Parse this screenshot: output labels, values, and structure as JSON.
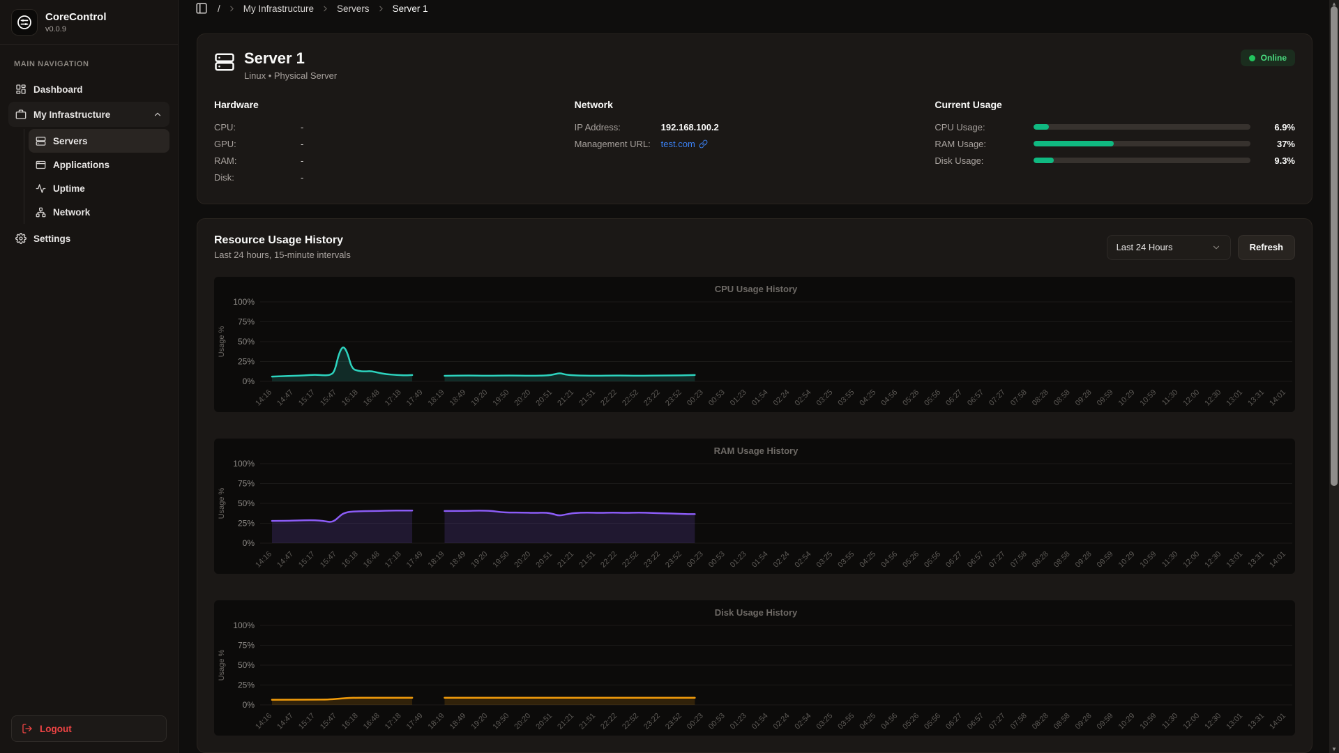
{
  "app": {
    "name": "CoreControl",
    "version": "v0.0.9"
  },
  "colors": {
    "accent_green": "#22c55e",
    "progress_fill": "#10b981",
    "logout_red": "#ef4444",
    "link_blue": "#3b82f6",
    "cpu_line": "#2dd4bf",
    "ram_line": "#8b5cf6",
    "disk_line": "#f59e0b"
  },
  "sidebar": {
    "section_label": "MAIN NAVIGATION",
    "items": [
      {
        "label": "Dashboard"
      },
      {
        "label": "My Infrastructure",
        "expanded": true
      },
      {
        "label": "Servers",
        "active": true
      },
      {
        "label": "Applications"
      },
      {
        "label": "Uptime"
      },
      {
        "label": "Network"
      },
      {
        "label": "Settings"
      }
    ],
    "logout_label": "Logout"
  },
  "breadcrumb": {
    "items": [
      "/",
      "My Infrastructure",
      "Servers",
      "Server 1"
    ]
  },
  "server_card": {
    "title": "Server 1",
    "subtitle": "Linux • Physical Server",
    "status": "Online",
    "hardware": {
      "heading": "Hardware",
      "rows": [
        {
          "label": "CPU:",
          "value": "-"
        },
        {
          "label": "GPU:",
          "value": "-"
        },
        {
          "label": "RAM:",
          "value": "-"
        },
        {
          "label": "Disk:",
          "value": "-"
        }
      ]
    },
    "network": {
      "heading": "Network",
      "ip_label": "IP Address:",
      "ip_value": "192.168.100.2",
      "url_label": "Management URL:",
      "url_value": "test.com"
    },
    "usage": {
      "heading": "Current Usage",
      "rows": [
        {
          "label": "CPU Usage:",
          "value": "6.9%",
          "pct": 6.9
        },
        {
          "label": "RAM Usage:",
          "value": "37%",
          "pct": 37
        },
        {
          "label": "Disk Usage:",
          "value": "9.3%",
          "pct": 9.3
        }
      ]
    }
  },
  "history_card": {
    "title": "Resource Usage History",
    "subtitle": "Last 24 hours, 15-minute intervals",
    "range_selected": "Last 24 Hours",
    "refresh_label": "Refresh"
  },
  "chart_data": [
    {
      "type": "area",
      "title": "CPU Usage History",
      "ylabel": "Usage %",
      "ylim": [
        0,
        100
      ],
      "yticks": [
        "0%",
        "25%",
        "50%",
        "75%",
        "100%"
      ],
      "grid": true,
      "x_tick_rotation": -45,
      "x_labels": [
        "14:16",
        "14:47",
        "15:17",
        "15:47",
        "16:18",
        "16:48",
        "17:18",
        "17:49",
        "18:19",
        "18:49",
        "19:20",
        "19:50",
        "20:20",
        "20:51",
        "21:21",
        "21:51",
        "22:22",
        "22:52",
        "23:22",
        "23:52",
        "00:23",
        "00:53",
        "01:23",
        "01:54",
        "02:24",
        "02:54",
        "03:25",
        "03:55",
        "04:25",
        "04:56",
        "05:26",
        "05:56",
        "06:27",
        "06:57",
        "07:27",
        "07:58",
        "08:28",
        "08:58",
        "09:28",
        "09:59",
        "10:29",
        "10:59",
        "11:30",
        "12:00",
        "12:30",
        "13:01",
        "13:31",
        "14:01"
      ],
      "color": "#2dd4bf",
      "fill": "rgba(45,212,191,0.16)",
      "segments": [
        {
          "points": [
            [
              0,
              6
            ],
            [
              0.5,
              6.5
            ],
            [
              1,
              7
            ],
            [
              1.5,
              7.5
            ],
            [
              2,
              8.5
            ],
            [
              2.4,
              7.5
            ],
            [
              2.7,
              8
            ],
            [
              2.9,
              12
            ],
            [
              3.1,
              35
            ],
            [
              3.3,
              45
            ],
            [
              3.5,
              36
            ],
            [
              3.7,
              16
            ],
            [
              4,
              13
            ],
            [
              4.3,
              12.5
            ],
            [
              4.6,
              13
            ],
            [
              4.9,
              11
            ],
            [
              5.3,
              9
            ],
            [
              5.8,
              8
            ],
            [
              6.2,
              7.5
            ],
            [
              6.5,
              8
            ]
          ]
        },
        {
          "points": [
            [
              8,
              7
            ],
            [
              9,
              7.5
            ],
            [
              10,
              7
            ],
            [
              11,
              7.5
            ],
            [
              12,
              7
            ],
            [
              12.8,
              7.5
            ],
            [
              13.1,
              9
            ],
            [
              13.35,
              10.5
            ],
            [
              13.6,
              8.5
            ],
            [
              14,
              7.5
            ],
            [
              15,
              7
            ],
            [
              16,
              7.5
            ],
            [
              17,
              7
            ],
            [
              18,
              7.5
            ],
            [
              19,
              7.5
            ],
            [
              19.6,
              8
            ]
          ]
        }
      ]
    },
    {
      "type": "area",
      "title": "RAM Usage History",
      "ylabel": "Usage %",
      "ylim": [
        0,
        100
      ],
      "yticks": [
        "0%",
        "25%",
        "50%",
        "75%",
        "100%"
      ],
      "grid": true,
      "x_tick_rotation": -45,
      "x_labels": [
        "14:16",
        "14:47",
        "15:17",
        "15:47",
        "16:18",
        "16:48",
        "17:18",
        "17:49",
        "18:19",
        "18:49",
        "19:20",
        "19:50",
        "20:20",
        "20:51",
        "21:21",
        "21:51",
        "22:22",
        "22:52",
        "23:22",
        "23:52",
        "00:23",
        "00:53",
        "01:23",
        "01:54",
        "02:24",
        "02:54",
        "03:25",
        "03:55",
        "04:25",
        "04:56",
        "05:26",
        "05:56",
        "06:27",
        "06:57",
        "07:27",
        "07:58",
        "08:28",
        "08:58",
        "09:28",
        "09:59",
        "10:29",
        "10:59",
        "11:30",
        "12:00",
        "12:30",
        "13:01",
        "13:31",
        "14:01"
      ],
      "color": "#8b5cf6",
      "fill": "rgba(139,92,246,0.16)",
      "segments": [
        {
          "points": [
            [
              0,
              28
            ],
            [
              0.6,
              28
            ],
            [
              1.2,
              28.5
            ],
            [
              1.8,
              29
            ],
            [
              2.2,
              28.5
            ],
            [
              2.5,
              27.5
            ],
            [
              2.7,
              26.5
            ],
            [
              2.9,
              28
            ],
            [
              3.1,
              33
            ],
            [
              3.3,
              37.5
            ],
            [
              3.6,
              39.5
            ],
            [
              4,
              40
            ],
            [
              4.5,
              40.5
            ],
            [
              5,
              40.5
            ],
            [
              5.5,
              41
            ],
            [
              6,
              41
            ],
            [
              6.5,
              41
            ]
          ]
        },
        {
          "points": [
            [
              8,
              40.5
            ],
            [
              9,
              40.5
            ],
            [
              9.6,
              41
            ],
            [
              10.2,
              40.5
            ],
            [
              10.6,
              39
            ],
            [
              11,
              38.5
            ],
            [
              11.6,
              38.5
            ],
            [
              12.2,
              38
            ],
            [
              12.7,
              38.5
            ],
            [
              13,
              37
            ],
            [
              13.3,
              34.5
            ],
            [
              13.6,
              36
            ],
            [
              14,
              38
            ],
            [
              14.6,
              38.5
            ],
            [
              15.2,
              38
            ],
            [
              15.8,
              38.5
            ],
            [
              16.4,
              38
            ],
            [
              17,
              38.5
            ],
            [
              17.6,
              38
            ],
            [
              18.2,
              37.5
            ],
            [
              18.8,
              37
            ],
            [
              19.3,
              36.5
            ],
            [
              19.6,
              36.5
            ]
          ]
        }
      ]
    },
    {
      "type": "area",
      "title": "Disk Usage History",
      "ylabel": "Usage %",
      "ylim": [
        0,
        100
      ],
      "yticks": [
        "0%",
        "25%",
        "50%",
        "75%",
        "100%"
      ],
      "grid": true,
      "x_tick_rotation": -45,
      "x_labels": [
        "14:16",
        "14:47",
        "15:17",
        "15:47",
        "16:18",
        "16:48",
        "17:18",
        "17:49",
        "18:19",
        "18:49",
        "19:20",
        "19:50",
        "20:20",
        "20:51",
        "21:21",
        "21:51",
        "22:22",
        "22:52",
        "23:22",
        "23:52",
        "00:23",
        "00:53",
        "01:23",
        "01:54",
        "02:24",
        "02:54",
        "03:25",
        "03:55",
        "04:25",
        "04:56",
        "05:26",
        "05:56",
        "06:27",
        "06:57",
        "07:27",
        "07:58",
        "08:28",
        "08:58",
        "09:28",
        "09:59",
        "10:29",
        "10:59",
        "11:30",
        "12:00",
        "12:30",
        "13:01",
        "13:31",
        "14:01"
      ],
      "color": "#f59e0b",
      "fill": "rgba(245,158,11,0.16)",
      "segments": [
        {
          "points": [
            [
              0,
              6.5
            ],
            [
              1,
              6.5
            ],
            [
              2,
              6.6
            ],
            [
              2.6,
              6.8
            ],
            [
              3,
              7.5
            ],
            [
              3.4,
              8.5
            ],
            [
              3.8,
              9
            ],
            [
              4.5,
              9
            ],
            [
              5.5,
              9
            ],
            [
              6.5,
              9
            ]
          ]
        },
        {
          "points": [
            [
              8,
              9
            ],
            [
              10,
              9
            ],
            [
              12,
              9
            ],
            [
              14,
              9
            ],
            [
              16,
              9
            ],
            [
              18,
              9
            ],
            [
              19.6,
              9
            ]
          ]
        }
      ]
    }
  ]
}
